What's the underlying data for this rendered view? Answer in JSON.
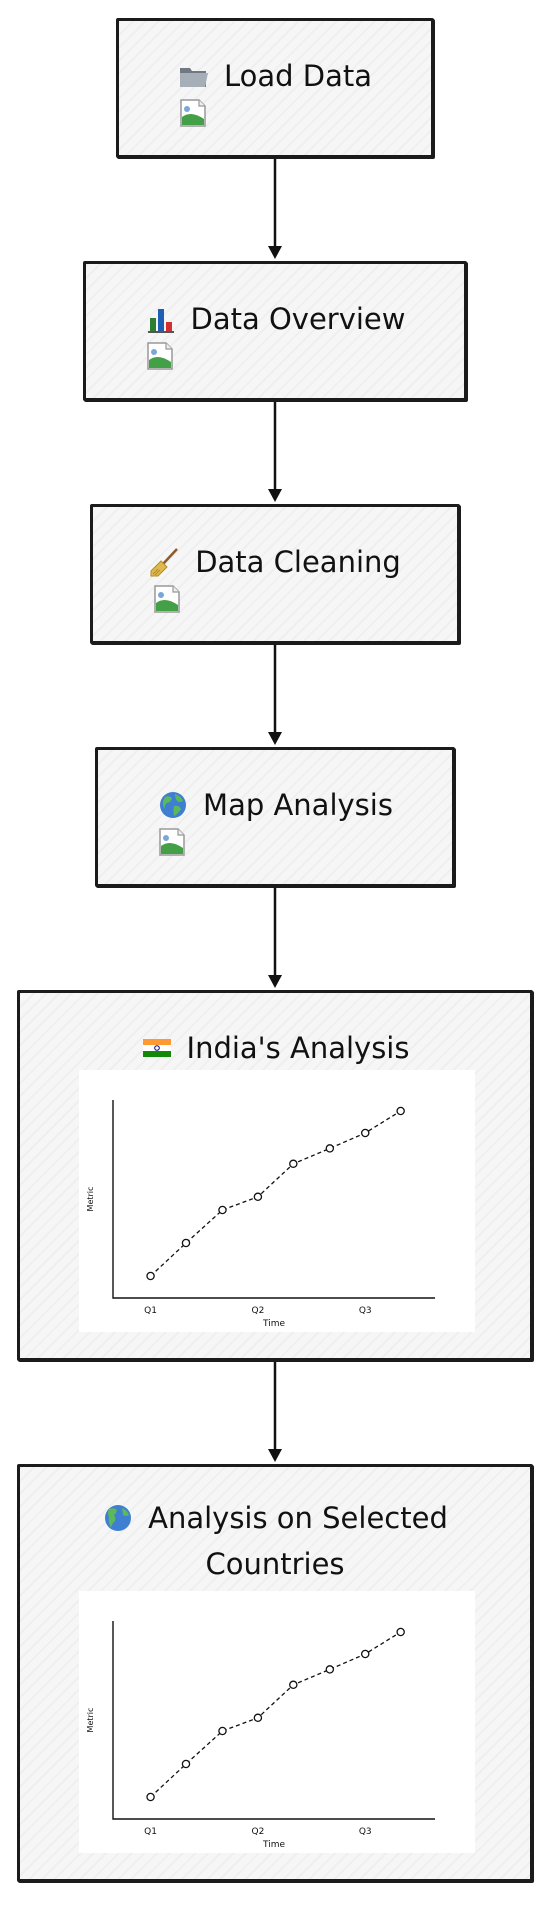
{
  "nodes": [
    {
      "id": "load-data",
      "title": "Load Data",
      "icon": "folder-icon"
    },
    {
      "id": "data-overview",
      "title": "Data Overview",
      "icon": "bar-chart-icon"
    },
    {
      "id": "data-cleaning",
      "title": "Data Cleaning",
      "icon": "broom-icon"
    },
    {
      "id": "map-analysis",
      "title": "Map Analysis",
      "icon": "globe-icon"
    },
    {
      "id": "india-analysis",
      "title": "India's Analysis",
      "icon": "india-flag-icon"
    },
    {
      "id": "selected-countries",
      "title_line1": "Analysis on Selected",
      "title_line2": "Countries",
      "icon": "globe-americas-icon"
    }
  ],
  "chart_data": [
    {
      "type": "line",
      "xlabel": "Time",
      "ylabel": "Metric",
      "x_ticks": [
        "Q1",
        "Q2",
        "Q3"
      ],
      "x": [
        0.0,
        0.33,
        0.67,
        1.0,
        1.33,
        1.67,
        2.0,
        2.33
      ],
      "values": [
        1.0,
        2.5,
        4.0,
        4.6,
        6.1,
        6.8,
        7.5,
        8.5
      ],
      "xlim": [
        -0.35,
        2.65
      ],
      "ylim": [
        0,
        9
      ],
      "grid": false
    },
    {
      "type": "line",
      "xlabel": "Time",
      "ylabel": "Metric",
      "x_ticks": [
        "Q1",
        "Q2",
        "Q3"
      ],
      "x": [
        0.0,
        0.33,
        0.67,
        1.0,
        1.33,
        1.67,
        2.0,
        2.33
      ],
      "values": [
        1.0,
        2.5,
        4.0,
        4.6,
        6.1,
        6.8,
        7.5,
        8.5
      ],
      "xlim": [
        -0.35,
        2.65
      ],
      "ylim": [
        0,
        9
      ],
      "grid": false
    }
  ]
}
